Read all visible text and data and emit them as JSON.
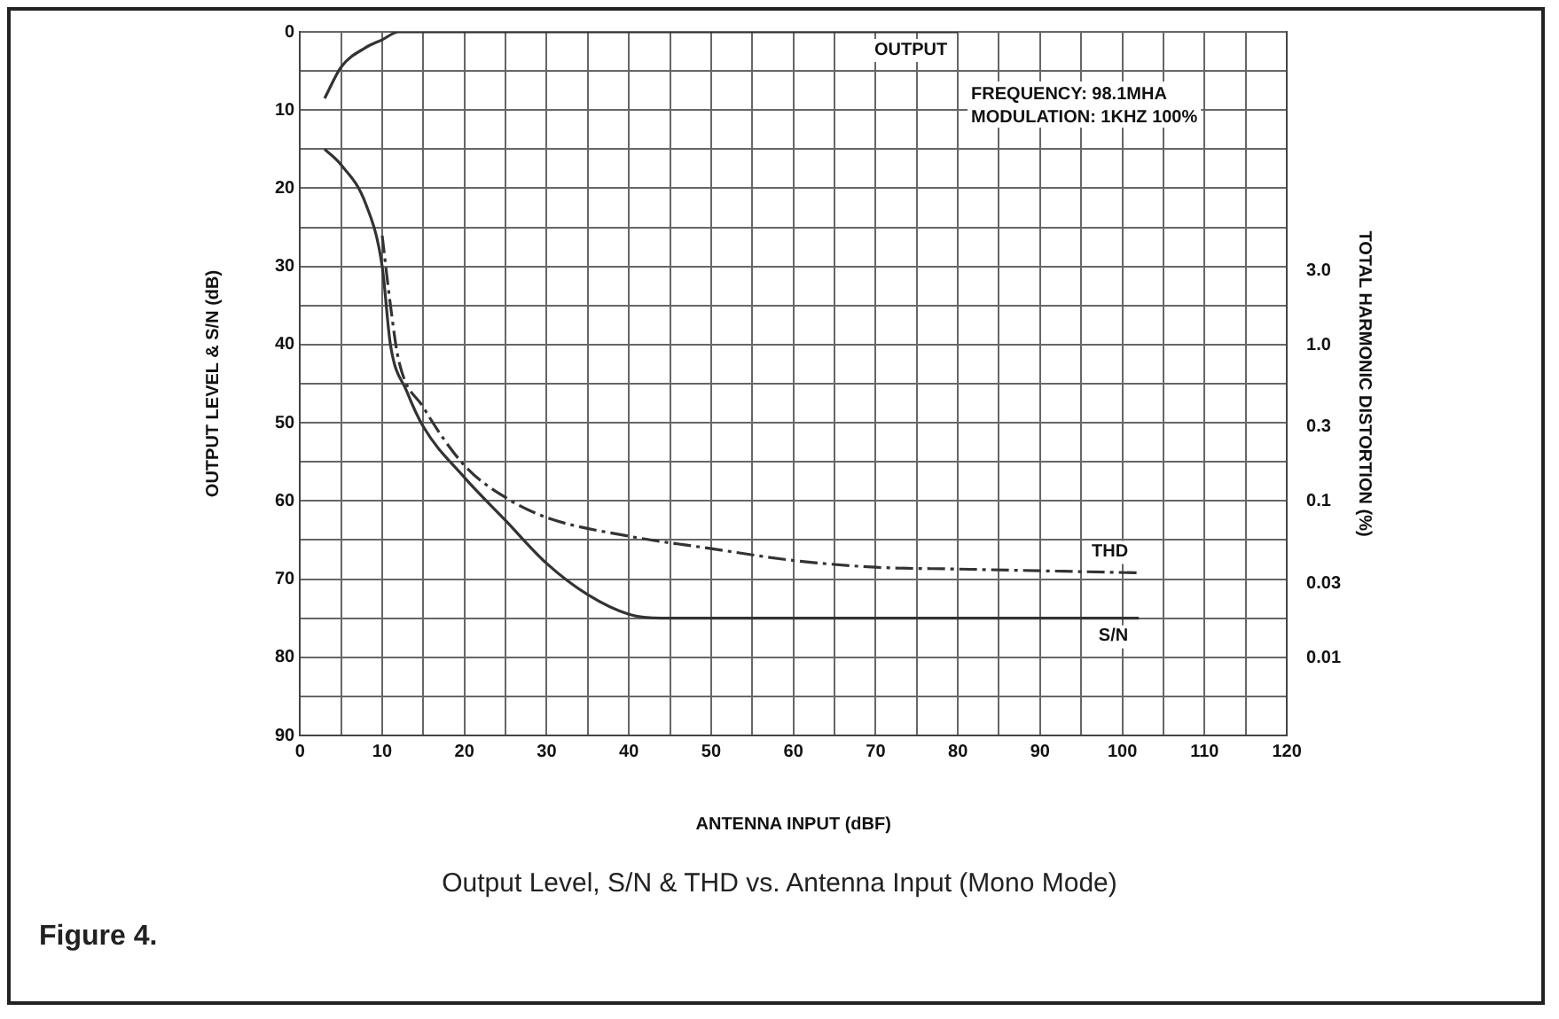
{
  "chart_data": {
    "type": "line",
    "title": "Output Level, S/N & THD vs. Antenna Input (Mono Mode)",
    "xlabel": "ANTENNA INPUT (dBF)",
    "ylabel": "OUTPUT LEVEL & S/N (dB)",
    "y2label": "TOTAL HARMONIC DISTORTION (%)",
    "annotations": [
      "FREQUENCY: 98.1MHA",
      "MODULATION: 1KHZ 100%",
      "Figure 4."
    ],
    "series": [
      {
        "name": "OUTPUT",
        "color": "#333333",
        "x": [
          3,
          5,
          8,
          10,
          12,
          15,
          80
        ],
        "values": [
          8.5,
          4.5,
          2,
          1,
          0,
          0,
          0
        ]
      },
      {
        "name": "S/N",
        "color": "#333333",
        "x": [
          3,
          5,
          8,
          10,
          11,
          13,
          15,
          20,
          25,
          30,
          35,
          40,
          44,
          102
        ],
        "values": [
          15,
          17,
          22,
          30,
          40,
          46,
          50.5,
          57,
          62.5,
          68,
          72,
          74.5,
          75,
          75
        ]
      },
      {
        "name": "THD",
        "color": "#333333",
        "axis": "y2",
        "line_style": "dashed",
        "x": [
          10,
          11,
          12,
          15,
          20,
          25,
          30,
          40,
          50,
          60,
          70,
          80,
          102
        ],
        "values": [
          5,
          1.8,
          0.8,
          0.4,
          0.17,
          0.106,
          0.079,
          0.06,
          0.05,
          0.042,
          0.038,
          0.037,
          0.035
        ]
      }
    ],
    "xlim": [
      0,
      120
    ],
    "xticks": [
      0,
      {
        "value": 5,
        "label": null
      },
      10,
      {
        "value": 15,
        "label": null
      },
      20,
      {
        "value": 25,
        "label": null
      },
      30,
      {
        "value": 35,
        "label": null
      },
      40,
      {
        "value": 45,
        "label": null
      },
      50,
      {
        "value": 55,
        "label": null
      },
      60,
      {
        "value": 65,
        "label": null
      },
      70,
      {
        "value": 75,
        "label": null
      },
      80,
      {
        "value": 85,
        "label": null
      },
      90,
      {
        "value": 95,
        "label": null
      },
      100,
      {
        "value": 105,
        "label": null
      },
      110,
      {
        "value": 115,
        "label": null
      },
      120
    ],
    "ylim": [
      90,
      0
    ],
    "yticks": [
      0,
      {
        "value": 5,
        "label": null
      },
      10,
      {
        "value": 15,
        "label": null
      },
      20,
      {
        "value": 25,
        "label": null
      },
      30,
      {
        "value": 35,
        "label": null
      },
      40,
      {
        "value": 45,
        "label": null
      },
      50,
      {
        "value": 55,
        "label": null
      },
      60,
      {
        "value": 65,
        "label": null
      },
      70,
      {
        "value": 75,
        "label": null
      },
      80,
      {
        "value": 85,
        "label": null
      },
      90
    ],
    "y2lim": [
      0.0032,
      100
    ],
    "y2ticks": [
      {
        "value": 3,
        "label": "3.0"
      },
      {
        "value": 1,
        "label": "1.0"
      },
      0.3,
      0.1,
      0.03,
      0.01
    ],
    "log": "y2",
    "grid": true,
    "legend": false,
    "marker": "none",
    "line_style": "solid"
  }
}
